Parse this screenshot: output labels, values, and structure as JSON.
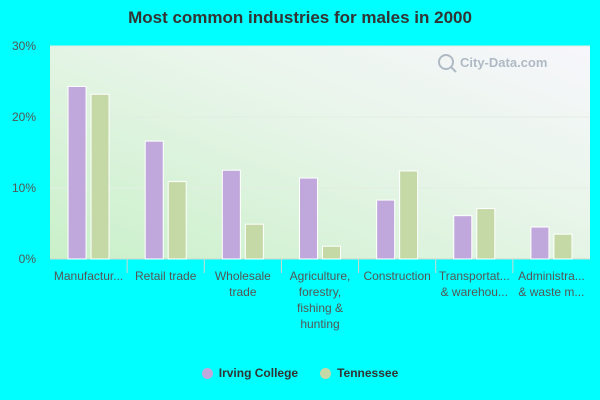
{
  "chart_data": {
    "type": "bar",
    "title": "Most common industries for males in 2000",
    "categories": [
      [
        "Manufactur..."
      ],
      [
        "Retail trade"
      ],
      [
        "Wholesale",
        "trade"
      ],
      [
        "Agriculture,",
        "forestry,",
        "fishing &",
        "hunting"
      ],
      [
        "Construction"
      ],
      [
        "Transportat...",
        "& warehou..."
      ],
      [
        "Administra...",
        "& waste m..."
      ]
    ],
    "series": [
      {
        "name": "Irving College",
        "color": "#c0a8dc",
        "values": [
          24.3,
          16.6,
          12.5,
          11.4,
          8.3,
          6.1,
          4.5
        ]
      },
      {
        "name": "Tennessee",
        "color": "#c4d9a6",
        "values": [
          23.2,
          10.9,
          4.9,
          1.8,
          12.4,
          7.1,
          3.5
        ]
      }
    ],
    "ylim": [
      0,
      30
    ],
    "yticks": [
      "0%",
      "10%",
      "20%",
      "30%"
    ],
    "grid": true,
    "legend": "bottom",
    "watermark": "City-Data.com"
  }
}
